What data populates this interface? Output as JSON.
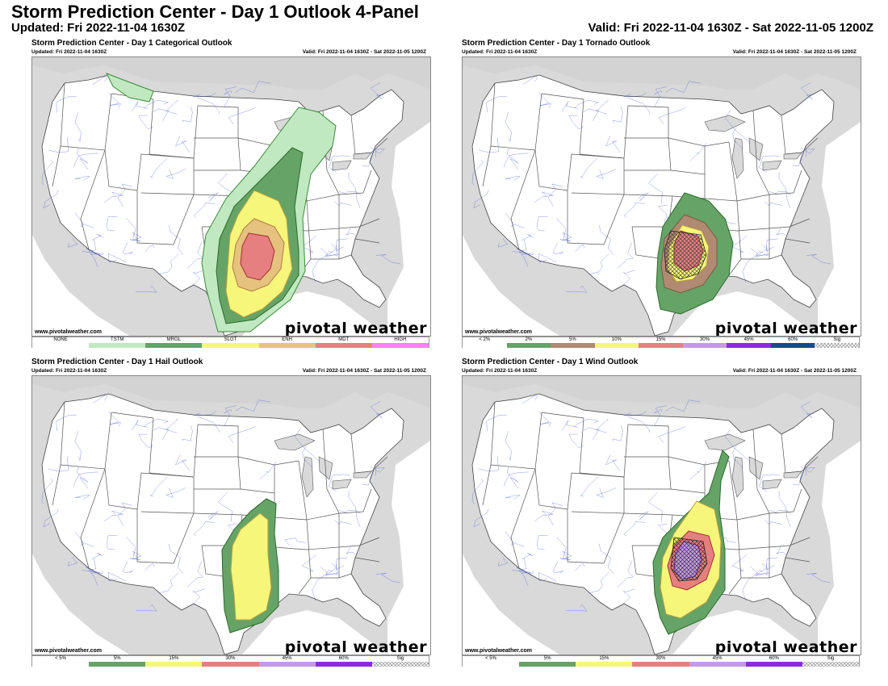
{
  "header": {
    "title": "Storm Prediction Center - Day 1 Outlook 4-Panel",
    "updated": "Updated: Fri 2022-11-04 1630Z",
    "valid": "Valid: Fri 2022-11-04 1630Z - Sat 2022-11-05 1200Z"
  },
  "panels": [
    {
      "title": "Storm Prediction Center - Day 1 Categorical Outlook",
      "updated": "Updated: Fri 2022-11-04 1630Z",
      "valid": "Valid: Fri 2022-11-04 1630Z - Sat 2022-11-05 1200Z",
      "site": "www.pivotalweather.com",
      "brand": "pivotal weather",
      "legend": [
        {
          "label": "NONE",
          "color": "#ffffff"
        },
        {
          "label": "TSTM",
          "color": "#c1e9c1"
        },
        {
          "label": "MRGL",
          "color": "#66a366"
        },
        {
          "label": "SLGT",
          "color": "#f6f67b"
        },
        {
          "label": "ENH",
          "color": "#e6c27f"
        },
        {
          "label": "MDT",
          "color": "#e67f7f"
        },
        {
          "label": "HIGH",
          "color": "#ff7fff"
        }
      ]
    },
    {
      "title": "Storm Prediction Center - Day 1 Tornado Outlook",
      "updated": "Updated: Fri 2022-11-04 1630Z",
      "valid": "Valid: Fri 2022-11-04 1630Z - Sat 2022-11-05 1200Z",
      "site": "www.pivotalweather.com",
      "brand": "pivotal weather",
      "legend": [
        {
          "label": "< 2%",
          "color": "#ffffff"
        },
        {
          "label": "2%",
          "color": "#66a366"
        },
        {
          "label": "5%",
          "color": "#b08a72"
        },
        {
          "label": "10%",
          "color": "#f6f67b"
        },
        {
          "label": "15%",
          "color": "#e67f7f"
        },
        {
          "label": "30%",
          "color": "#c49ae6"
        },
        {
          "label": "45%",
          "color": "#8a2be2"
        },
        {
          "label": "60%",
          "color": "#104e8b"
        },
        {
          "label": "Sig",
          "color": "#dddddd"
        }
      ]
    },
    {
      "title": "Storm Prediction Center - Day 1 Hail Outlook",
      "updated": "Updated: Fri 2022-11-04 1630Z",
      "valid": "Valid: Fri 2022-11-04 1630Z - Sat 2022-11-05 1200Z",
      "site": "www.pivotalweather.com",
      "brand": "pivotal weather",
      "legend": [
        {
          "label": "< 5%",
          "color": "#ffffff"
        },
        {
          "label": "5%",
          "color": "#66a366"
        },
        {
          "label": "15%",
          "color": "#f6f67b"
        },
        {
          "label": "30%",
          "color": "#e67f7f"
        },
        {
          "label": "45%",
          "color": "#c49ae6"
        },
        {
          "label": "60%",
          "color": "#8a2be2"
        },
        {
          "label": "Sig",
          "color": "#dddddd"
        }
      ]
    },
    {
      "title": "Storm Prediction Center - Day 1 Wind Outlook",
      "updated": "Updated: Fri 2022-11-04 1630Z",
      "valid": "Valid: Fri 2022-11-04 1630Z - Sat 2022-11-05 1200Z",
      "site": "www.pivotalweather.com",
      "brand": "pivotal weather",
      "legend": [
        {
          "label": "< 5%",
          "color": "#ffffff"
        },
        {
          "label": "5%",
          "color": "#66a366"
        },
        {
          "label": "15%",
          "color": "#f6f67b"
        },
        {
          "label": "30%",
          "color": "#e67f7f"
        },
        {
          "label": "45%",
          "color": "#c49ae6"
        },
        {
          "label": "60%",
          "color": "#8a2be2"
        },
        {
          "label": "Sig",
          "color": "#dddddd"
        }
      ]
    }
  ]
}
